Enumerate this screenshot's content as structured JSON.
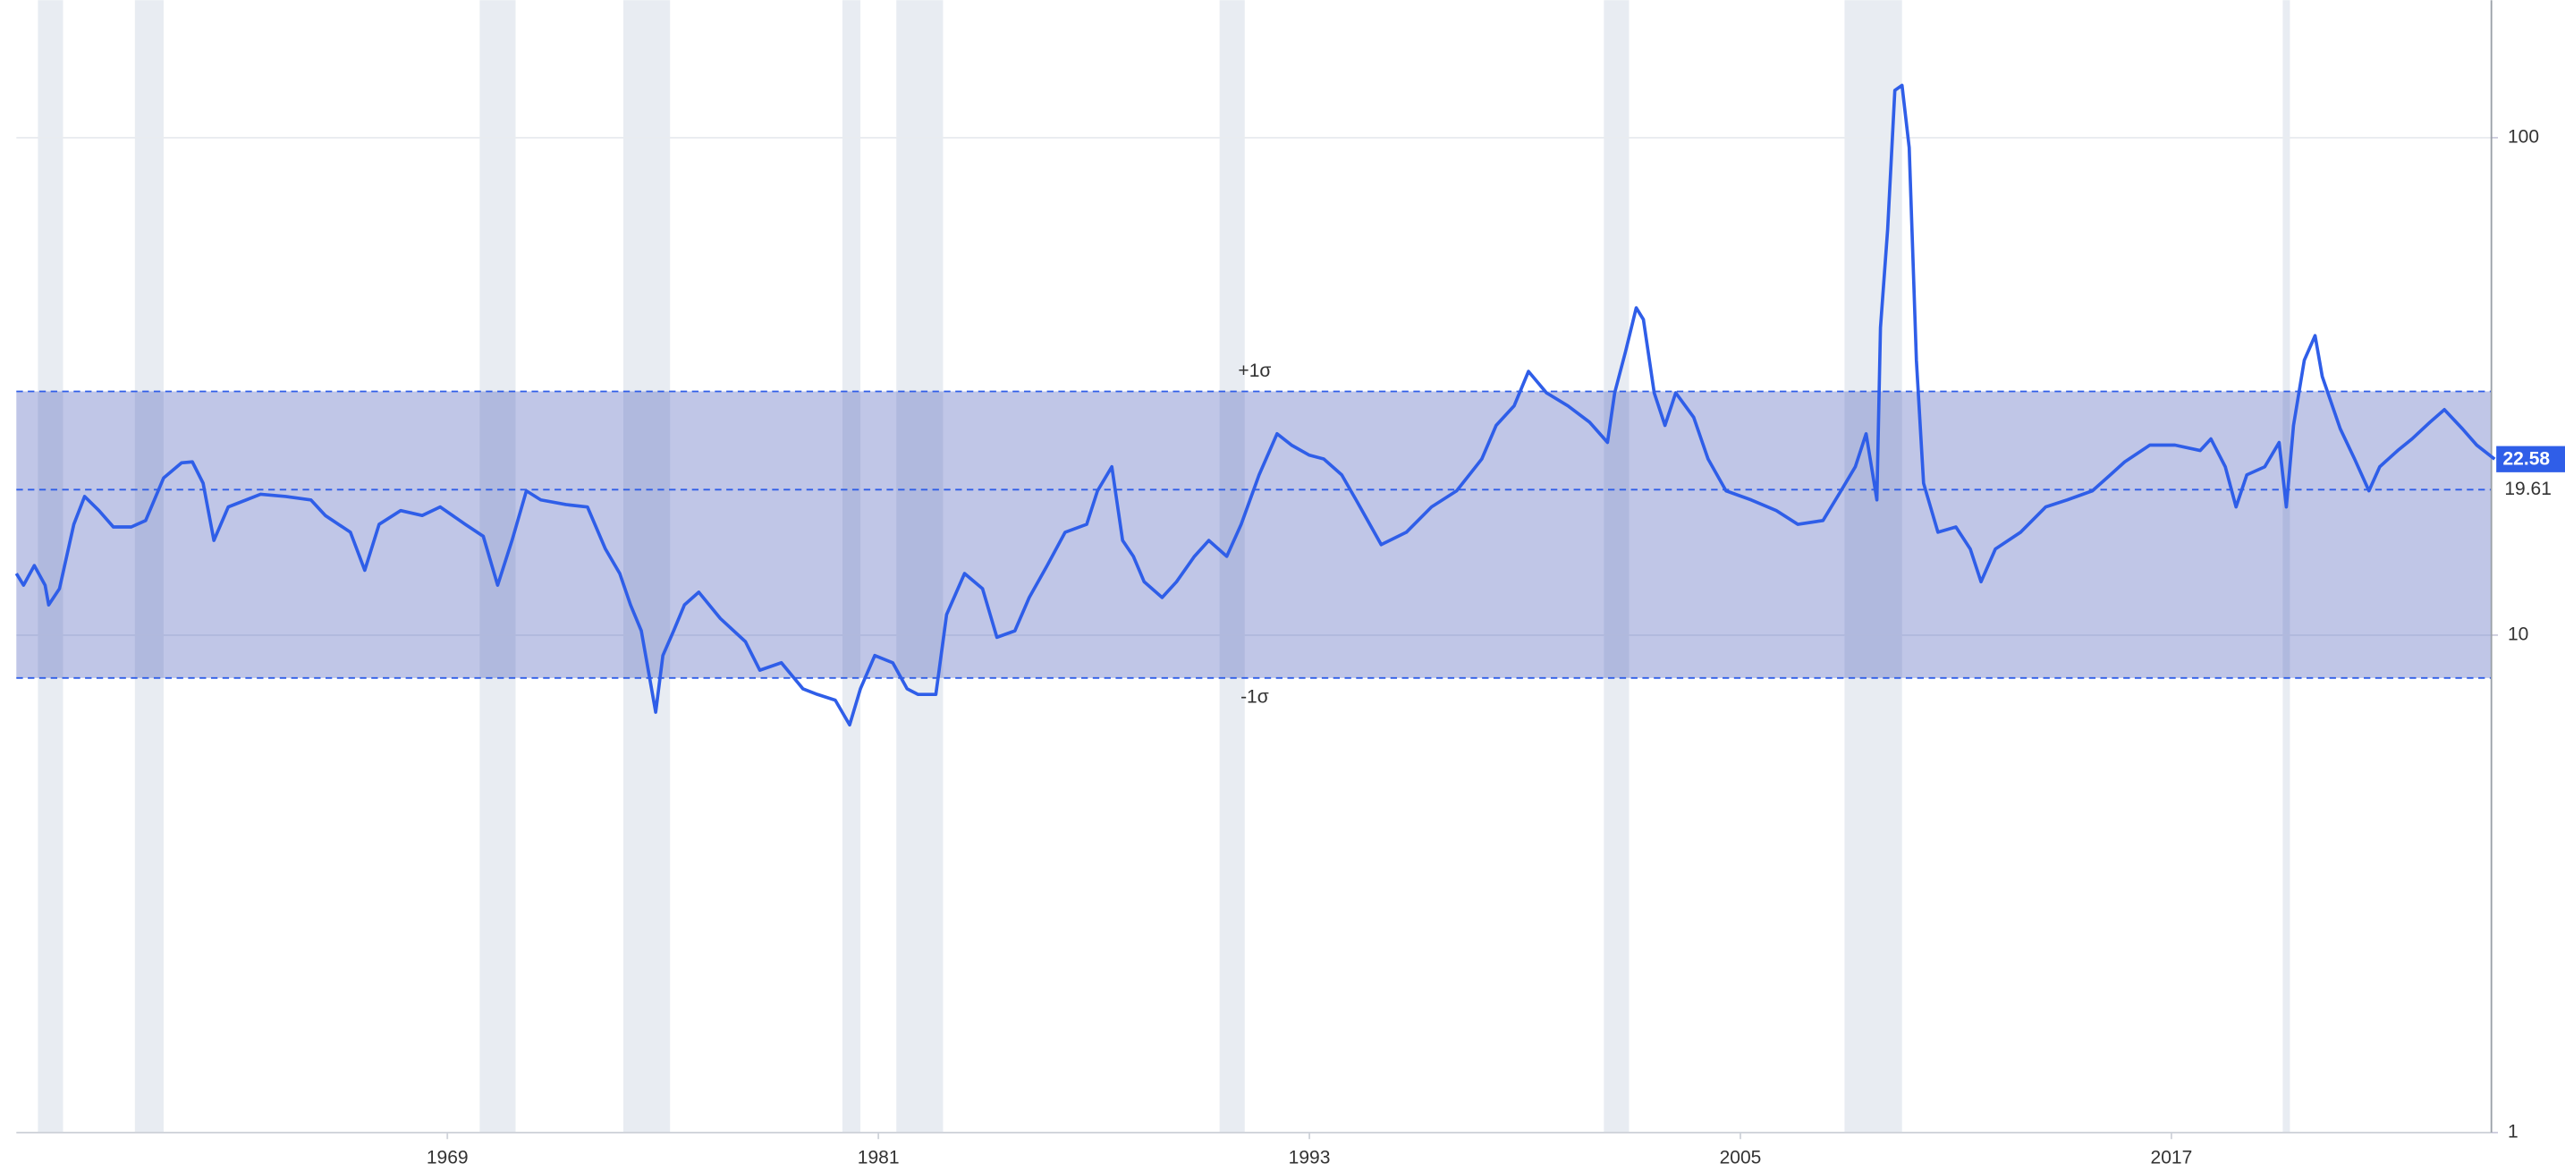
{
  "chart_data": {
    "type": "line",
    "color": "#2f5ee8",
    "log_y": true,
    "y_axis_side": "right",
    "grid": true,
    "xlim": [
      1957,
      2026
    ],
    "xticks": [
      1969,
      1981,
      1993,
      2005,
      2017
    ],
    "ylim": [
      1,
      189
    ],
    "yticks": [
      1,
      10,
      100
    ],
    "sigma_band": {
      "upper": 30.9,
      "lower": 8.2,
      "mean": 19.61,
      "upper_label": "+1σ",
      "lower_label": "-1σ",
      "color": "#3f51b5"
    },
    "recession_color": "#e8ecf2",
    "recessions": [
      [
        1957.6,
        1958.3
      ],
      [
        1960.3,
        1961.1
      ],
      [
        1969.9,
        1970.9
      ],
      [
        1973.9,
        1975.2
      ],
      [
        1980.0,
        1980.5
      ],
      [
        1981.5,
        1982.8
      ],
      [
        1990.5,
        1991.2
      ],
      [
        2001.2,
        2001.9
      ],
      [
        2007.9,
        2009.5
      ],
      [
        2020.1,
        2020.3
      ]
    ],
    "x": [
      1957.0,
      1957.2,
      1957.5,
      1957.8,
      1957.9,
      1958.2,
      1958.6,
      1958.9,
      1959.3,
      1959.7,
      1960.2,
      1960.6,
      1961.1,
      1961.6,
      1961.9,
      1962.2,
      1962.5,
      1962.9,
      1963.4,
      1963.8,
      1964.5,
      1965.2,
      1965.6,
      1966.3,
      1966.7,
      1967.1,
      1967.7,
      1968.3,
      1968.8,
      1969.5,
      1970.0,
      1970.4,
      1970.8,
      1971.2,
      1971.6,
      1972.3,
      1972.9,
      1973.4,
      1973.8,
      1974.1,
      1974.4,
      1974.8,
      1975.0,
      1975.3,
      1975.6,
      1976.0,
      1976.6,
      1977.3,
      1977.7,
      1978.3,
      1978.9,
      1979.3,
      1979.8,
      1980.2,
      1980.5,
      1980.9,
      1981.4,
      1981.8,
      1982.1,
      1982.6,
      1982.9,
      1983.4,
      1983.9,
      1984.3,
      1984.8,
      1985.2,
      1985.7,
      1986.2,
      1986.8,
      1987.1,
      1987.5,
      1987.8,
      1988.1,
      1988.4,
      1988.9,
      1989.3,
      1989.8,
      1990.2,
      1990.7,
      1991.1,
      1991.6,
      1992.1,
      1992.5,
      1993.0,
      1993.4,
      1993.9,
      1994.3,
      1995.0,
      1995.7,
      1996.4,
      1997.1,
      1997.8,
      1998.2,
      1998.7,
      1999.1,
      1999.6,
      2000.2,
      2000.8,
      2001.3,
      2001.5,
      2001.8,
      2002.1,
      2002.3,
      2002.6,
      2002.9,
      2003.2,
      2003.7,
      2004.1,
      2004.6,
      2005.3,
      2006.0,
      2006.6,
      2007.3,
      2007.8,
      2008.2,
      2008.5,
      2008.8,
      2008.9,
      2009.1,
      2009.3,
      2009.5,
      2009.7,
      2009.9,
      2010.1,
      2010.5,
      2011.0,
      2011.4,
      2011.7,
      2012.1,
      2012.8,
      2013.5,
      2014.1,
      2014.8,
      2015.3,
      2015.7,
      2016.4,
      2017.1,
      2017.8,
      2018.1,
      2018.5,
      2018.8,
      2019.1,
      2019.6,
      2020.0,
      2020.2,
      2020.4,
      2020.7,
      2021.0,
      2021.2,
      2021.7,
      2022.1,
      2022.5,
      2022.8,
      2023.3,
      2023.7,
      2024.2,
      2024.6,
      2025.1,
      2025.5,
      2026.0
    ],
    "values": [
      13.3,
      12.6,
      13.8,
      12.6,
      11.5,
      12.4,
      16.7,
      19.0,
      17.8,
      16.5,
      16.5,
      17.0,
      20.7,
      22.2,
      22.3,
      20.2,
      15.5,
      18.1,
      18.7,
      19.2,
      19.0,
      18.7,
      17.4,
      16.1,
      13.5,
      16.7,
      17.8,
      17.4,
      18.1,
      16.7,
      15.8,
      12.6,
      15.5,
      19.5,
      18.7,
      18.3,
      18.1,
      14.9,
      13.3,
      11.5,
      10.2,
      7.0,
      9.1,
      10.2,
      11.5,
      12.2,
      10.8,
      9.7,
      8.5,
      8.8,
      7.8,
      7.6,
      7.4,
      6.6,
      7.8,
      9.1,
      8.8,
      7.8,
      7.6,
      7.6,
      11.0,
      13.3,
      12.4,
      9.9,
      10.2,
      11.9,
      13.8,
      16.1,
      16.7,
      19.5,
      21.8,
      15.5,
      14.4,
      12.8,
      11.9,
      12.8,
      14.4,
      15.5,
      14.4,
      16.7,
      21.0,
      25.4,
      24.1,
      23.0,
      22.6,
      21.0,
      18.7,
      15.2,
      16.1,
      18.1,
      19.5,
      22.6,
      26.4,
      28.9,
      33.9,
      30.7,
      28.9,
      26.8,
      24.4,
      30.7,
      37.1,
      45.5,
      43.1,
      30.7,
      26.4,
      30.7,
      27.4,
      22.6,
      19.5,
      18.7,
      17.8,
      16.7,
      17.0,
      19.5,
      21.8,
      25.4,
      18.7,
      41.5,
      65.4,
      124.5,
      127.4,
      95.5,
      35.7,
      20.2,
      16.1,
      16.5,
      14.9,
      12.8,
      14.9,
      16.1,
      18.1,
      18.7,
      19.5,
      21.0,
      22.3,
      24.1,
      24.1,
      23.5,
      24.8,
      21.8,
      18.1,
      21.0,
      21.8,
      24.4,
      18.1,
      26.4,
      35.7,
      40.0,
      33.1,
      26.0,
      22.6,
      19.5,
      21.8,
      23.5,
      24.8,
      26.8,
      28.4,
      26.0,
      24.1,
      22.58
    ]
  }
}
